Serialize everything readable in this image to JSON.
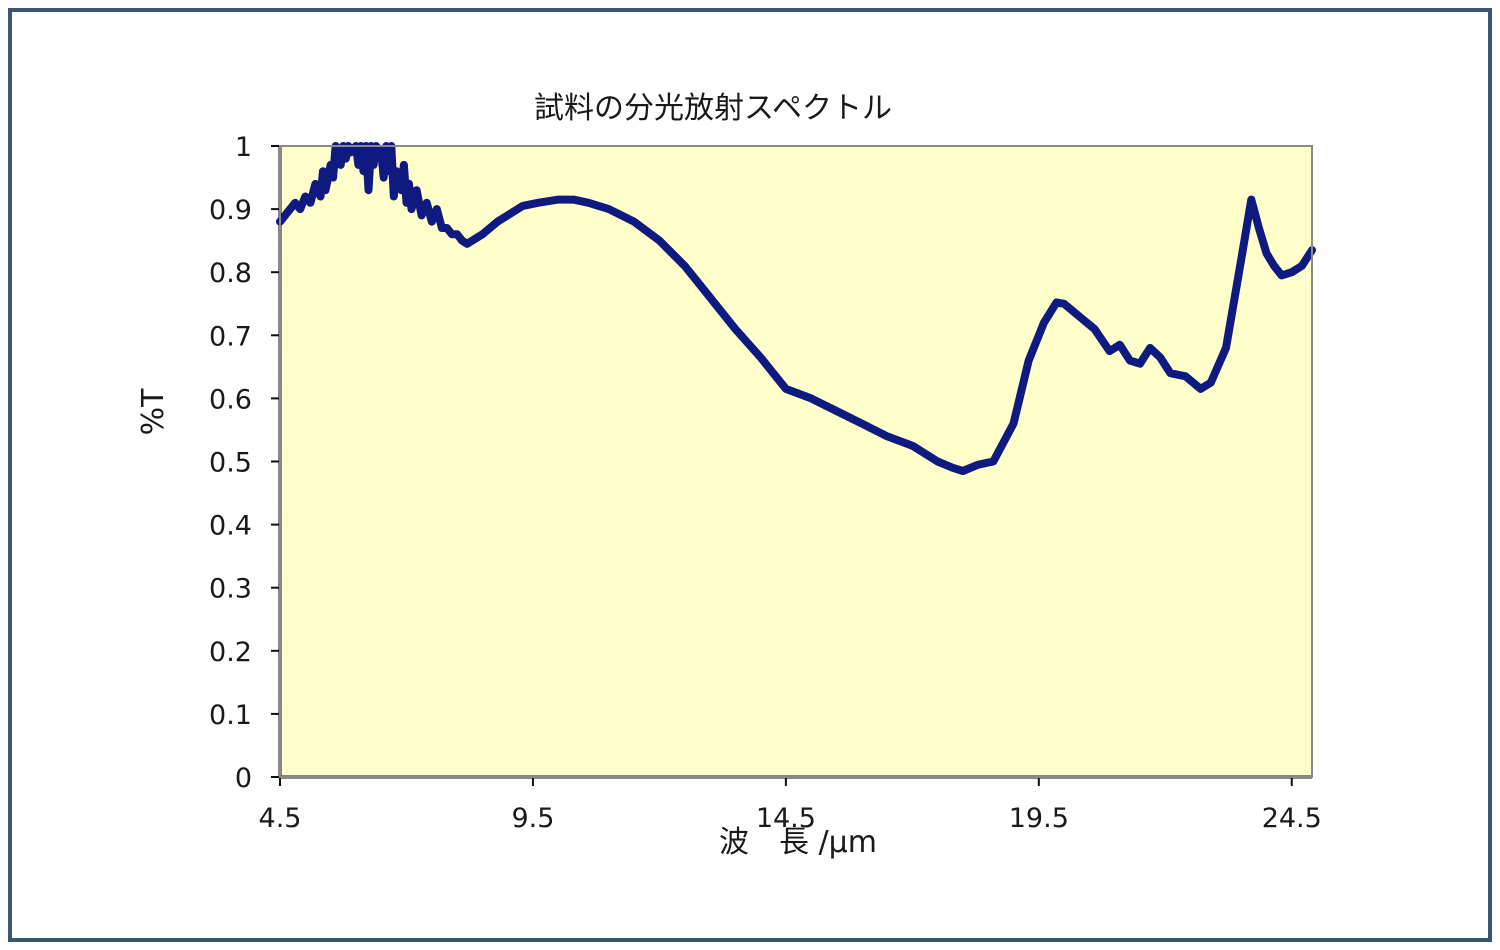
{
  "chart_data": {
    "type": "line",
    "title": "試料の分光放射スペクトル",
    "xlabel": "波　長 /μm",
    "ylabel": "%T",
    "xlim": [
      4.5,
      24.9
    ],
    "ylim": [
      0,
      1
    ],
    "x_ticks": [
      "4.5",
      "9.5",
      "14.5",
      "19.5",
      "24.5"
    ],
    "y_ticks": [
      "0",
      "0.1",
      "0.2",
      "0.3",
      "0.4",
      "0.5",
      "0.6",
      "0.7",
      "0.8",
      "0.9",
      "1"
    ],
    "grid": false,
    "colors": {
      "plot_bg": "#ffffcc",
      "line": "#0f1a80",
      "frame": "#3b5573"
    },
    "series": [
      {
        "x": [
          4.5,
          4.6,
          4.7,
          4.8,
          4.9,
          5.0,
          5.1,
          5.2,
          5.3,
          5.35,
          5.4,
          5.5,
          5.55,
          5.6,
          5.7,
          5.75,
          5.8,
          5.85,
          5.9,
          6.0,
          6.05,
          6.1,
          6.15,
          6.2,
          6.25,
          6.3,
          6.35,
          6.4,
          6.5,
          6.55,
          6.6,
          6.65,
          6.7,
          6.75,
          6.8,
          6.9,
          6.95,
          7.0,
          7.05,
          7.1,
          7.2,
          7.3,
          7.4,
          7.5,
          7.6,
          7.7,
          7.8,
          7.9,
          8.0,
          8.1,
          8.2,
          8.3,
          8.5,
          8.8,
          9.0,
          9.3,
          9.6,
          10.0,
          10.3,
          10.6,
          11.0,
          11.5,
          12.0,
          12.5,
          13.0,
          13.5,
          14.0,
          14.5,
          15.0,
          15.5,
          16.0,
          16.5,
          17.0,
          17.5,
          17.8,
          18.0,
          18.3,
          18.6,
          19.0,
          19.3,
          19.6,
          19.85,
          20.0,
          20.3,
          20.6,
          20.9,
          21.1,
          21.3,
          21.5,
          21.7,
          21.9,
          22.1,
          22.4,
          22.7,
          22.9,
          23.2,
          23.5,
          23.7,
          23.85,
          24.0,
          24.15,
          24.3,
          24.5,
          24.7,
          24.9
        ],
        "y": [
          0.88,
          0.89,
          0.9,
          0.91,
          0.9,
          0.92,
          0.91,
          0.94,
          0.92,
          0.96,
          0.93,
          0.97,
          0.95,
          1.0,
          0.97,
          1.0,
          0.98,
          1.0,
          0.99,
          1.0,
          0.97,
          1.0,
          0.96,
          1.0,
          0.93,
          1.0,
          0.97,
          1.0,
          0.99,
          0.95,
          1.0,
          0.96,
          1.0,
          0.92,
          0.96,
          0.93,
          0.97,
          0.91,
          0.94,
          0.9,
          0.93,
          0.89,
          0.91,
          0.88,
          0.9,
          0.87,
          0.87,
          0.86,
          0.86,
          0.85,
          0.845,
          0.85,
          0.86,
          0.88,
          0.89,
          0.905,
          0.91,
          0.915,
          0.915,
          0.91,
          0.9,
          0.88,
          0.85,
          0.81,
          0.76,
          0.71,
          0.665,
          0.615,
          0.6,
          0.58,
          0.56,
          0.54,
          0.525,
          0.5,
          0.49,
          0.485,
          0.495,
          0.5,
          0.56,
          0.66,
          0.72,
          0.752,
          0.75,
          0.73,
          0.71,
          0.675,
          0.685,
          0.66,
          0.655,
          0.68,
          0.665,
          0.64,
          0.635,
          0.615,
          0.625,
          0.68,
          0.82,
          0.915,
          0.87,
          0.83,
          0.81,
          0.795,
          0.8,
          0.81,
          0.835
        ]
      }
    ]
  }
}
